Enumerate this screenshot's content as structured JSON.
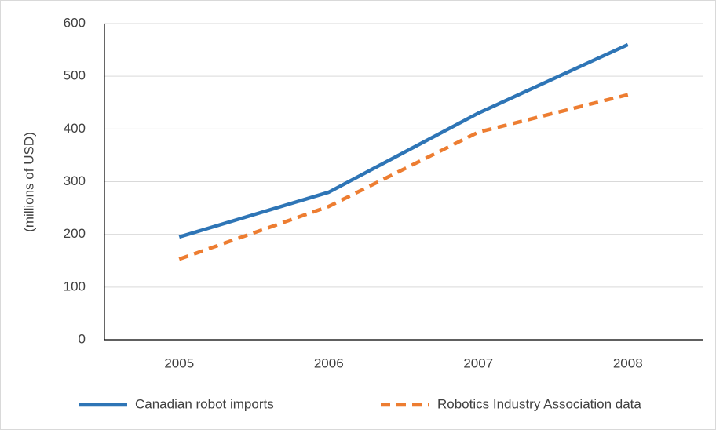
{
  "chart_data": {
    "type": "line",
    "y_label": "(millions of USD)",
    "categories": [
      "2005",
      "2006",
      "2007",
      "2008"
    ],
    "series": [
      {
        "name": "Canadian robot imports",
        "color": "#2e75b6",
        "dash": "none",
        "values": [
          195,
          280,
          430,
          560
        ]
      },
      {
        "name": "Robotics Industry Association data",
        "color": "#ed7d31",
        "dash": "12 8",
        "values": [
          153,
          253,
          394,
          465
        ]
      }
    ],
    "ylim": [
      0,
      600
    ],
    "yticks": [
      0,
      100,
      200,
      300,
      400,
      500,
      600
    ],
    "grid": true,
    "legend": "bottom"
  }
}
